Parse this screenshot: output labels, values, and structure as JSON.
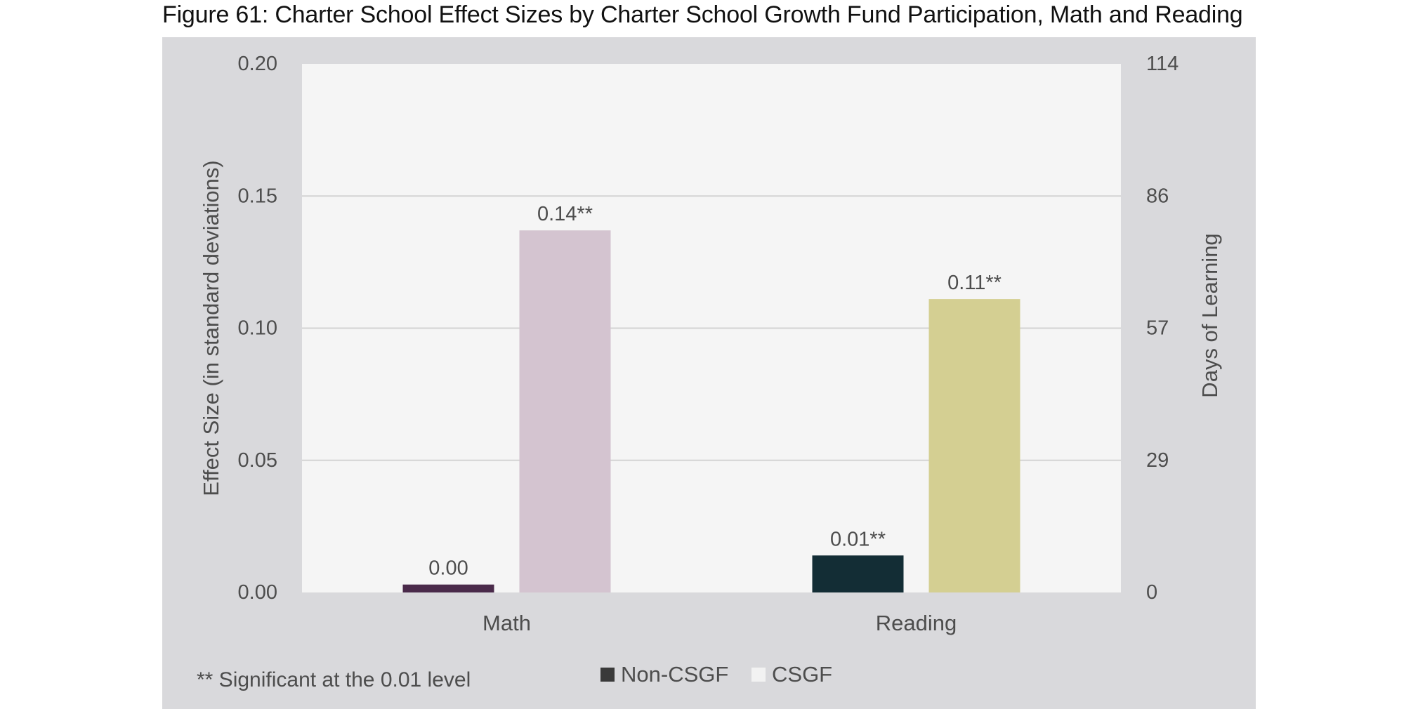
{
  "figure": {
    "title": "Figure 61: Charter School Effect Sizes by Charter School Growth Fund Participation, Math and Reading"
  },
  "chart_data": {
    "type": "bar",
    "title": "Figure 61: Charter School Effect Sizes by Charter School Growth Fund Participation, Math and Reading",
    "xlabel": "",
    "ylabel": "Effect Size (in standard deviations)",
    "y2label": "Days of Learning",
    "ylim": [
      0,
      0.2
    ],
    "yticks": [
      "0.00",
      "0.05",
      "0.10",
      "0.15",
      "0.20"
    ],
    "y2ticks": [
      "0",
      "29",
      "57",
      "86",
      "114"
    ],
    "grid": true,
    "categories": [
      "Math",
      "Reading"
    ],
    "groups": [
      {
        "category": "Math",
        "bars": [
          {
            "series": "Non-CSGF",
            "value": 0.003,
            "label": "0.00",
            "color": "#4a2a4a"
          },
          {
            "series": "CSGF",
            "value": 0.137,
            "label": "0.14**",
            "color": "#d4c4d0"
          }
        ]
      },
      {
        "category": "Reading",
        "bars": [
          {
            "series": "Non-CSGF",
            "value": 0.014,
            "label": "0.01**",
            "color": "#132d35"
          },
          {
            "series": "CSGF",
            "value": 0.111,
            "label": "0.11**",
            "color": "#d4cf92"
          }
        ]
      }
    ],
    "legend": [
      {
        "name": "Non-CSGF",
        "color": "#3a3a3a"
      },
      {
        "name": "CSGF",
        "color": "#f2f2f2"
      }
    ],
    "legend_position": "bottom-center",
    "footnote": "** Significant at the 0.01 level",
    "colors": {
      "outer_background": "#d9d9dc",
      "plot_background": "#f5f5f5",
      "gridline": "#d3d3d3",
      "text": "#4d4d4d"
    }
  }
}
